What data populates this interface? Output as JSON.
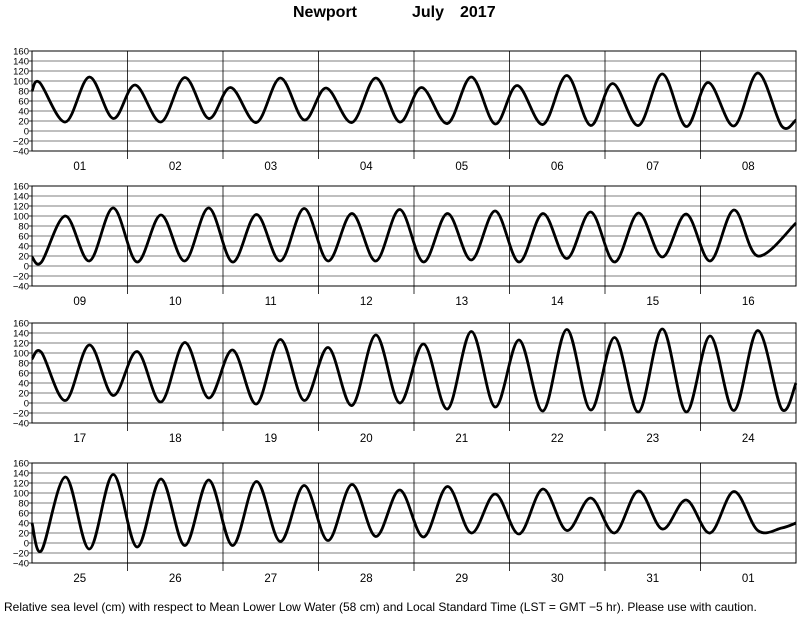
{
  "header": {
    "station": "Newport",
    "month": "July",
    "year": "2017"
  },
  "footnote": "Relative sea level (cm) with respect to Mean Lower Low Water (58 cm) and Local Standard Time (LST = GMT −5 hr). Please use with caution.",
  "chart_data": {
    "type": "line",
    "ylim": [
      -40,
      160
    ],
    "yticks": [
      "160",
      "140",
      "120",
      "100",
      "80",
      "60",
      "40",
      "20",
      "0",
      "−20",
      "−40"
    ],
    "grid": true,
    "line_color": "#000000",
    "rows": [
      {
        "days": [
          "01",
          "02",
          "03",
          "04",
          "05",
          "06",
          "07",
          "08"
        ],
        "x": [
          0.0,
          0.08,
          0.35,
          0.6,
          0.85,
          1.08,
          1.35,
          1.6,
          1.85,
          2.08,
          2.35,
          2.6,
          2.85,
          3.08,
          3.35,
          3.6,
          3.85,
          4.08,
          4.35,
          4.6,
          4.85,
          5.08,
          5.35,
          5.6,
          5.85,
          6.08,
          6.35,
          6.6,
          6.85,
          7.08,
          7.35,
          7.6,
          7.85,
          8.0
        ],
        "y": [
          80,
          97,
          18,
          108,
          25,
          92,
          18,
          107,
          25,
          87,
          17,
          106,
          22,
          86,
          17,
          106,
          18,
          87,
          15,
          108,
          14,
          91,
          13,
          111,
          11,
          95,
          11,
          114,
          9,
          97,
          10,
          116,
          10,
          22
        ]
      },
      {
        "days": [
          "09",
          "10",
          "11",
          "12",
          "13",
          "14",
          "15",
          "16"
        ],
        "x": [
          0.0,
          0.1,
          0.35,
          0.6,
          0.85,
          1.1,
          1.35,
          1.6,
          1.85,
          2.1,
          2.35,
          2.6,
          2.85,
          3.1,
          3.35,
          3.6,
          3.85,
          4.1,
          4.35,
          4.6,
          4.85,
          5.1,
          5.35,
          5.6,
          5.85,
          6.1,
          6.35,
          6.6,
          6.85,
          7.1,
          7.35,
          7.6,
          8.0
        ],
        "y": [
          18,
          8,
          100,
          10,
          116,
          8,
          102,
          10,
          116,
          8,
          103,
          10,
          115,
          10,
          105,
          10,
          113,
          8,
          105,
          12,
          110,
          8,
          105,
          15,
          108,
          8,
          106,
          18,
          104,
          10,
          112,
          20,
          86
        ]
      },
      {
        "days": [
          "17",
          "18",
          "19",
          "20",
          "21",
          "22",
          "23",
          "24"
        ],
        "x": [
          0.0,
          0.1,
          0.35,
          0.6,
          0.85,
          1.1,
          1.35,
          1.6,
          1.85,
          2.1,
          2.35,
          2.6,
          2.85,
          3.1,
          3.35,
          3.6,
          3.85,
          4.1,
          4.35,
          4.6,
          4.85,
          5.1,
          5.35,
          5.6,
          5.85,
          6.1,
          6.35,
          6.6,
          6.85,
          7.1,
          7.35,
          7.6,
          7.85,
          8.0
        ],
        "y": [
          88,
          101,
          5,
          116,
          15,
          103,
          2,
          121,
          10,
          106,
          -2,
          127,
          5,
          111,
          -5,
          136,
          0,
          118,
          -12,
          143,
          -8,
          126,
          -16,
          147,
          -14,
          131,
          -18,
          148,
          -18,
          134,
          -15,
          145,
          -12,
          40
        ]
      },
      {
        "days": [
          "25",
          "26",
          "27",
          "28",
          "29",
          "30",
          "31",
          "01"
        ],
        "x": [
          0.0,
          0.1,
          0.35,
          0.6,
          0.85,
          1.1,
          1.35,
          1.6,
          1.85,
          2.1,
          2.35,
          2.6,
          2.85,
          3.1,
          3.35,
          3.6,
          3.85,
          4.1,
          4.35,
          4.6,
          4.85,
          5.1,
          5.35,
          5.6,
          5.85,
          6.1,
          6.35,
          6.6,
          6.85,
          7.1,
          7.35,
          7.6,
          7.85,
          8.0
        ],
        "y": [
          40,
          -15,
          132,
          -12,
          137,
          -8,
          128,
          -5,
          126,
          -5,
          123,
          3,
          115,
          5,
          117,
          13,
          106,
          12,
          113,
          20,
          98,
          18,
          108,
          25,
          90,
          20,
          104,
          28,
          86,
          20,
          103,
          25,
          30,
          40
        ]
      }
    ]
  }
}
